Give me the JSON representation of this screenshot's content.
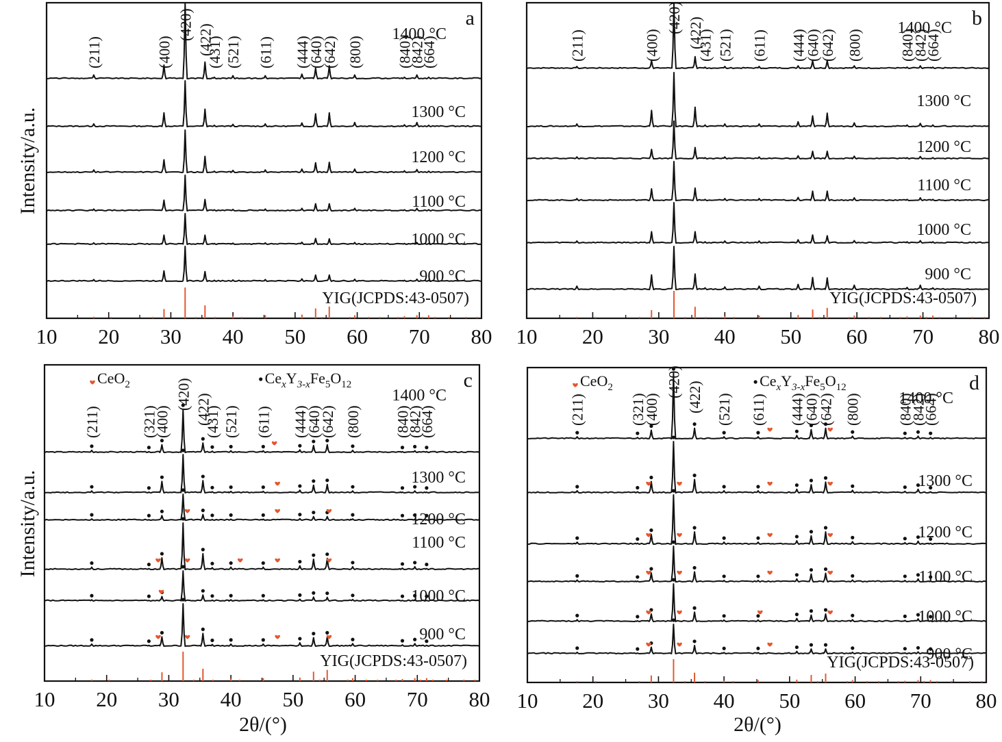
{
  "chart_data": [
    {
      "type": "line",
      "panel": "a",
      "xlabel": "",
      "ylabel": "Intensity/a.u.",
      "xlim": [
        10,
        80
      ],
      "xticks": [
        10,
        20,
        30,
        40,
        50,
        60,
        70,
        80
      ],
      "temperatures": [
        "1400 °C",
        "1300 °C",
        "1200 °C",
        "1100 °C",
        "1000 °C",
        "900 °C"
      ],
      "hkl": [
        "(211)",
        "(400)",
        "(420)",
        "(422)",
        "(431)",
        "(521)",
        "(611)",
        "(444)",
        "(640)",
        "(642)",
        "(800)",
        "(840)",
        "(842)",
        "(664)"
      ],
      "hkl_positions": [
        17.6,
        28.9,
        32.3,
        35.5,
        37.0,
        40.0,
        45.2,
        51.1,
        53.3,
        55.5,
        59.6,
        67.6,
        69.6,
        71.5
      ],
      "peaks": [
        {
          "x": 17.6,
          "rel": [
            0.05,
            0.06,
            0.06,
            0.05,
            0.05,
            0.05
          ]
        },
        {
          "x": 28.9,
          "rel": [
            0.18,
            0.3,
            0.3,
            0.3,
            0.3,
            0.3
          ]
        },
        {
          "x": 32.3,
          "rel": [
            1.0,
            1.0,
            1.0,
            1.0,
            1.0,
            1.0
          ]
        },
        {
          "x": 35.5,
          "rel": [
            0.22,
            0.38,
            0.38,
            0.32,
            0.3,
            0.28
          ]
        },
        {
          "x": 37.0,
          "rel": [
            0.02,
            0.03,
            0.03,
            0.03,
            0.03,
            0.03
          ]
        },
        {
          "x": 40.0,
          "rel": [
            0.04,
            0.05,
            0.05,
            0.04,
            0.04,
            0.04
          ]
        },
        {
          "x": 45.2,
          "rel": [
            0.04,
            0.06,
            0.06,
            0.05,
            0.05,
            0.05
          ]
        },
        {
          "x": 51.1,
          "rel": [
            0.06,
            0.08,
            0.08,
            0.07,
            0.07,
            0.07
          ]
        },
        {
          "x": 53.3,
          "rel": [
            0.14,
            0.28,
            0.23,
            0.2,
            0.19,
            0.18
          ]
        },
        {
          "x": 55.5,
          "rel": [
            0.17,
            0.3,
            0.24,
            0.2,
            0.18,
            0.18
          ]
        },
        {
          "x": 59.6,
          "rel": [
            0.05,
            0.09,
            0.08,
            0.07,
            0.06,
            0.06
          ]
        },
        {
          "x": 67.6,
          "rel": [
            0.02,
            0.04,
            0.04,
            0.03,
            0.03,
            0.03
          ]
        },
        {
          "x": 69.6,
          "rel": [
            0.05,
            0.09,
            0.07,
            0.07,
            0.06,
            0.06
          ]
        },
        {
          "x": 71.5,
          "rel": [
            0.02,
            0.03,
            0.03,
            0.03,
            0.03,
            0.03
          ]
        }
      ],
      "reference_label": "YIG(JCPDS:43-0507)",
      "panel_label": "a"
    },
    {
      "type": "line",
      "panel": "b",
      "xlabel": "",
      "ylabel": "",
      "xlim": [
        10,
        80
      ],
      "xticks": [
        10,
        20,
        30,
        40,
        50,
        60,
        70,
        80
      ],
      "temperatures": [
        "1400 °C",
        "1300 °C",
        "1200 °C",
        "1100 °C",
        "1000 °C",
        "900 °C"
      ],
      "hkl": [
        "(211)",
        "(400)",
        "(420)",
        "(422)",
        "(431)",
        "(521)",
        "(611)",
        "(444)",
        "(640)",
        "(642)",
        "(800)",
        "(840)",
        "(842)",
        "(664)"
      ],
      "hkl_positions": [
        17.6,
        28.9,
        32.3,
        35.5,
        37.0,
        40.0,
        45.2,
        51.1,
        53.3,
        55.5,
        59.6,
        67.6,
        69.6,
        71.5
      ],
      "peaks": [
        {
          "x": 17.6,
          "rel": [
            0.03,
            0.05,
            0.05,
            0.05,
            0.05,
            0.08
          ]
        },
        {
          "x": 28.9,
          "rel": [
            0.12,
            0.3,
            0.25,
            0.3,
            0.28,
            0.34
          ]
        },
        {
          "x": 32.3,
          "rel": [
            1.0,
            1.0,
            1.0,
            1.0,
            1.0,
            1.0
          ]
        },
        {
          "x": 35.5,
          "rel": [
            0.18,
            0.36,
            0.3,
            0.32,
            0.28,
            0.36
          ]
        },
        {
          "x": 37.0,
          "rel": [
            0.02,
            0.03,
            0.03,
            0.03,
            0.03,
            0.04
          ]
        },
        {
          "x": 40.0,
          "rel": [
            0.03,
            0.05,
            0.05,
            0.05,
            0.05,
            0.06
          ]
        },
        {
          "x": 45.2,
          "rel": [
            0.03,
            0.05,
            0.05,
            0.05,
            0.05,
            0.08
          ]
        },
        {
          "x": 51.1,
          "rel": [
            0.04,
            0.09,
            0.08,
            0.08,
            0.08,
            0.12
          ]
        },
        {
          "x": 53.3,
          "rel": [
            0.12,
            0.2,
            0.2,
            0.24,
            0.2,
            0.28
          ]
        },
        {
          "x": 55.5,
          "rel": [
            0.12,
            0.25,
            0.2,
            0.24,
            0.18,
            0.27
          ]
        },
        {
          "x": 59.6,
          "rel": [
            0.04,
            0.07,
            0.07,
            0.07,
            0.06,
            0.1
          ]
        },
        {
          "x": 67.6,
          "rel": [
            0.02,
            0.03,
            0.03,
            0.03,
            0.03,
            0.05
          ]
        },
        {
          "x": 69.6,
          "rel": [
            0.04,
            0.06,
            0.06,
            0.07,
            0.06,
            0.1
          ]
        },
        {
          "x": 71.5,
          "rel": [
            0.02,
            0.03,
            0.03,
            0.03,
            0.03,
            0.04
          ]
        }
      ],
      "reference_label": "YIG(JCPDS:43-0507)",
      "panel_label": "b"
    },
    {
      "type": "line",
      "panel": "c",
      "xlabel": "2θ/(°)",
      "ylabel": "Intensity/a.u.",
      "xlim": [
        10,
        80
      ],
      "xticks": [
        10,
        20,
        30,
        40,
        50,
        60,
        70,
        80
      ],
      "temperatures": [
        "1400 °C",
        "1300 °C",
        "1200 °C",
        "1100 °C",
        "1000 °C",
        "900 °C"
      ],
      "hkl": [
        "(211)",
        "(321)",
        "(400)",
        "(420)",
        "(422)",
        "(431)",
        "(521)",
        "(611)",
        "(444)",
        "(640)",
        "(642)",
        "(800)",
        "(840)",
        "(842)",
        "(664)"
      ],
      "hkl_positions": [
        17.6,
        26.8,
        28.9,
        32.3,
        35.5,
        37.0,
        40.0,
        45.2,
        51.1,
        53.3,
        55.5,
        59.6,
        67.6,
        69.6,
        71.5
      ],
      "legend": {
        "ceo2": "CeO",
        "ceo2_sub": "2",
        "garnet_prefix": "Ce",
        "garnet_x": "x",
        "garnet_y": "Y",
        "garnet_sub1": "3-x",
        "garnet_fe": "Fe",
        "garnet_sub2": "5",
        "garnet_o": "O",
        "garnet_sub3": "12"
      },
      "peaks": [
        {
          "x": 17.6,
          "rel": [
            0.05,
            0.05,
            0.05,
            0.05,
            0.04,
            0.05
          ]
        },
        {
          "x": 26.8,
          "rel": [
            0.02,
            0.02,
            0.02,
            0.02,
            0.02,
            0.02
          ]
        },
        {
          "x": 28.9,
          "rel": [
            0.18,
            0.3,
            0.18,
            0.25,
            0.15,
            0.22
          ]
        },
        {
          "x": 32.3,
          "rel": [
            1.0,
            1.0,
            1.0,
            1.0,
            1.0,
            1.0
          ]
        },
        {
          "x": 35.5,
          "rel": [
            0.22,
            0.32,
            0.22,
            0.34,
            0.2,
            0.3
          ]
        },
        {
          "x": 37.0,
          "rel": [
            0.03,
            0.03,
            0.03,
            0.04,
            0.03,
            0.04
          ]
        },
        {
          "x": 40.0,
          "rel": [
            0.04,
            0.04,
            0.04,
            0.05,
            0.04,
            0.05
          ]
        },
        {
          "x": 45.2,
          "rel": [
            0.04,
            0.04,
            0.04,
            0.05,
            0.04,
            0.05
          ]
        },
        {
          "x": 51.1,
          "rel": [
            0.06,
            0.07,
            0.06,
            0.08,
            0.06,
            0.08
          ]
        },
        {
          "x": 53.3,
          "rel": [
            0.16,
            0.2,
            0.14,
            0.22,
            0.13,
            0.2
          ]
        },
        {
          "x": 55.5,
          "rel": [
            0.18,
            0.22,
            0.14,
            0.24,
            0.12,
            0.22
          ]
        },
        {
          "x": 59.6,
          "rel": [
            0.05,
            0.05,
            0.05,
            0.06,
            0.05,
            0.06
          ]
        },
        {
          "x": 67.6,
          "rel": [
            0.02,
            0.02,
            0.02,
            0.03,
            0.02,
            0.03
          ]
        },
        {
          "x": 69.6,
          "rel": [
            0.04,
            0.05,
            0.04,
            0.06,
            0.04,
            0.06
          ]
        },
        {
          "x": 71.5,
          "rel": [
            0.02,
            0.02,
            0.02,
            0.02,
            0.02,
            0.02
          ]
        }
      ],
      "ceo2_markers": [
        [
          47.0
        ],
        [
          47.5
        ],
        [
          33.0,
          47.5,
          55.8
        ],
        [
          28.3,
          33.0,
          41.5,
          47.5,
          55.8
        ],
        [
          28.8
        ],
        [
          28.3,
          33.0,
          47.5,
          55.8
        ]
      ],
      "reference_label": "YIG(JCPDS:43-0507)",
      "panel_label": "c"
    },
    {
      "type": "line",
      "panel": "d",
      "xlabel": "2θ/(°)",
      "ylabel": "",
      "xlim": [
        10,
        80
      ],
      "xticks": [
        10,
        20,
        30,
        40,
        50,
        60,
        70,
        80
      ],
      "temperatures": [
        "1400 °C",
        "1300 °C",
        "1200 °C",
        "1100 °C",
        "1000 °C",
        "900 °C"
      ],
      "hkl": [
        "(211)",
        "(321)",
        "(400)",
        "(420)",
        "(422)",
        "(521)",
        "(611)",
        "(444)",
        "(640)",
        "(642)",
        "(800)",
        "(840)",
        "(842)",
        "(664)"
      ],
      "hkl_positions": [
        17.6,
        26.8,
        28.9,
        32.3,
        35.5,
        40.0,
        45.2,
        51.1,
        53.3,
        55.5,
        59.6,
        67.6,
        69.6,
        71.5
      ],
      "legend": {
        "ceo2": "CeO",
        "ceo2_sub": "2",
        "garnet_prefix": "Ce",
        "garnet_x": "x",
        "garnet_y": "Y",
        "garnet_sub1": "3-x",
        "garnet_fe": "Fe",
        "garnet_sub2": "5",
        "garnet_o": "O",
        "garnet_sub3": "12"
      },
      "peaks": [
        {
          "x": 17.6,
          "rel": [
            0.03,
            0.04,
            0.04,
            0.05,
            0.05,
            0.05
          ]
        },
        {
          "x": 26.8,
          "rel": [
            0.02,
            0.02,
            0.02,
            0.02,
            0.02,
            0.02
          ]
        },
        {
          "x": 28.9,
          "rel": [
            0.13,
            0.22,
            0.2,
            0.25,
            0.2,
            0.22
          ]
        },
        {
          "x": 32.3,
          "rel": [
            1.0,
            1.0,
            1.0,
            1.0,
            1.0,
            1.0
          ]
        },
        {
          "x": 35.5,
          "rel": [
            0.16,
            0.26,
            0.25,
            0.28,
            0.25,
            0.28
          ]
        },
        {
          "x": 40.0,
          "rel": [
            0.03,
            0.04,
            0.04,
            0.04,
            0.04,
            0.04
          ]
        },
        {
          "x": 45.2,
          "rel": [
            0.03,
            0.04,
            0.04,
            0.04,
            0.04,
            0.04
          ]
        },
        {
          "x": 51.1,
          "rel": [
            0.05,
            0.07,
            0.07,
            0.08,
            0.08,
            0.08
          ]
        },
        {
          "x": 53.3,
          "rel": [
            0.14,
            0.16,
            0.17,
            0.22,
            0.17,
            0.16
          ]
        },
        {
          "x": 55.5,
          "rel": [
            0.16,
            0.21,
            0.25,
            0.24,
            0.2,
            0.16
          ]
        },
        {
          "x": 59.6,
          "rel": [
            0.04,
            0.05,
            0.05,
            0.05,
            0.05,
            0.05
          ]
        },
        {
          "x": 67.6,
          "rel": [
            0.02,
            0.03,
            0.03,
            0.04,
            0.03,
            0.03
          ]
        },
        {
          "x": 69.6,
          "rel": [
            0.04,
            0.07,
            0.06,
            0.08,
            0.07,
            0.06
          ]
        },
        {
          "x": 71.5,
          "rel": [
            0.02,
            0.02,
            0.02,
            0.02,
            0.02,
            0.02
          ]
        }
      ],
      "ceo2_markers": [
        [
          47.0,
          56.2
        ],
        [
          28.5,
          33.2,
          47.0,
          56.2
        ],
        [
          28.5,
          33.2,
          47.0,
          56.2
        ],
        [
          28.5,
          33.2,
          47.0,
          56.2
        ],
        [
          28.5,
          33.2,
          45.5,
          56.2
        ],
        [
          28.5,
          33.2,
          47.0
        ]
      ],
      "reference_label": "YIG(JCPDS:43-0507)",
      "panel_label": "d"
    }
  ],
  "reference_pattern": {
    "name": "YIG(JCPDS:43-0507)",
    "lines": [
      {
        "x": 17.6,
        "rel": 0.05
      },
      {
        "x": 20.4,
        "rel": 0.01
      },
      {
        "x": 27.1,
        "rel": 0.02
      },
      {
        "x": 28.9,
        "rel": 0.3
      },
      {
        "x": 32.3,
        "rel": 1.0
      },
      {
        "x": 34.0,
        "rel": 0.03
      },
      {
        "x": 35.5,
        "rel": 0.42
      },
      {
        "x": 37.1,
        "rel": 0.02
      },
      {
        "x": 40.0,
        "rel": 0.08
      },
      {
        "x": 41.4,
        "rel": 0.02
      },
      {
        "x": 45.2,
        "rel": 0.1
      },
      {
        "x": 51.1,
        "rel": 0.12
      },
      {
        "x": 53.3,
        "rel": 0.32
      },
      {
        "x": 54.3,
        "rel": 0.03
      },
      {
        "x": 55.5,
        "rel": 0.38
      },
      {
        "x": 58.8,
        "rel": 0.02
      },
      {
        "x": 59.6,
        "rel": 0.1
      },
      {
        "x": 61.8,
        "rel": 0.02
      },
      {
        "x": 63.6,
        "rel": 0.01
      },
      {
        "x": 66.6,
        "rel": 0.02
      },
      {
        "x": 67.6,
        "rel": 0.07
      },
      {
        "x": 69.6,
        "rel": 0.1
      },
      {
        "x": 70.5,
        "rel": 0.03
      },
      {
        "x": 71.5,
        "rel": 0.1
      },
      {
        "x": 72.5,
        "rel": 0.02
      },
      {
        "x": 74.7,
        "rel": 0.02
      },
      {
        "x": 77.5,
        "rel": 0.01
      },
      {
        "x": 79.3,
        "rel": 0.01
      }
    ]
  },
  "colors": {
    "trace": "#111111",
    "reference": "#e4572e",
    "ceo2_marker": "#e4572e",
    "garnet_marker": "#111111"
  }
}
